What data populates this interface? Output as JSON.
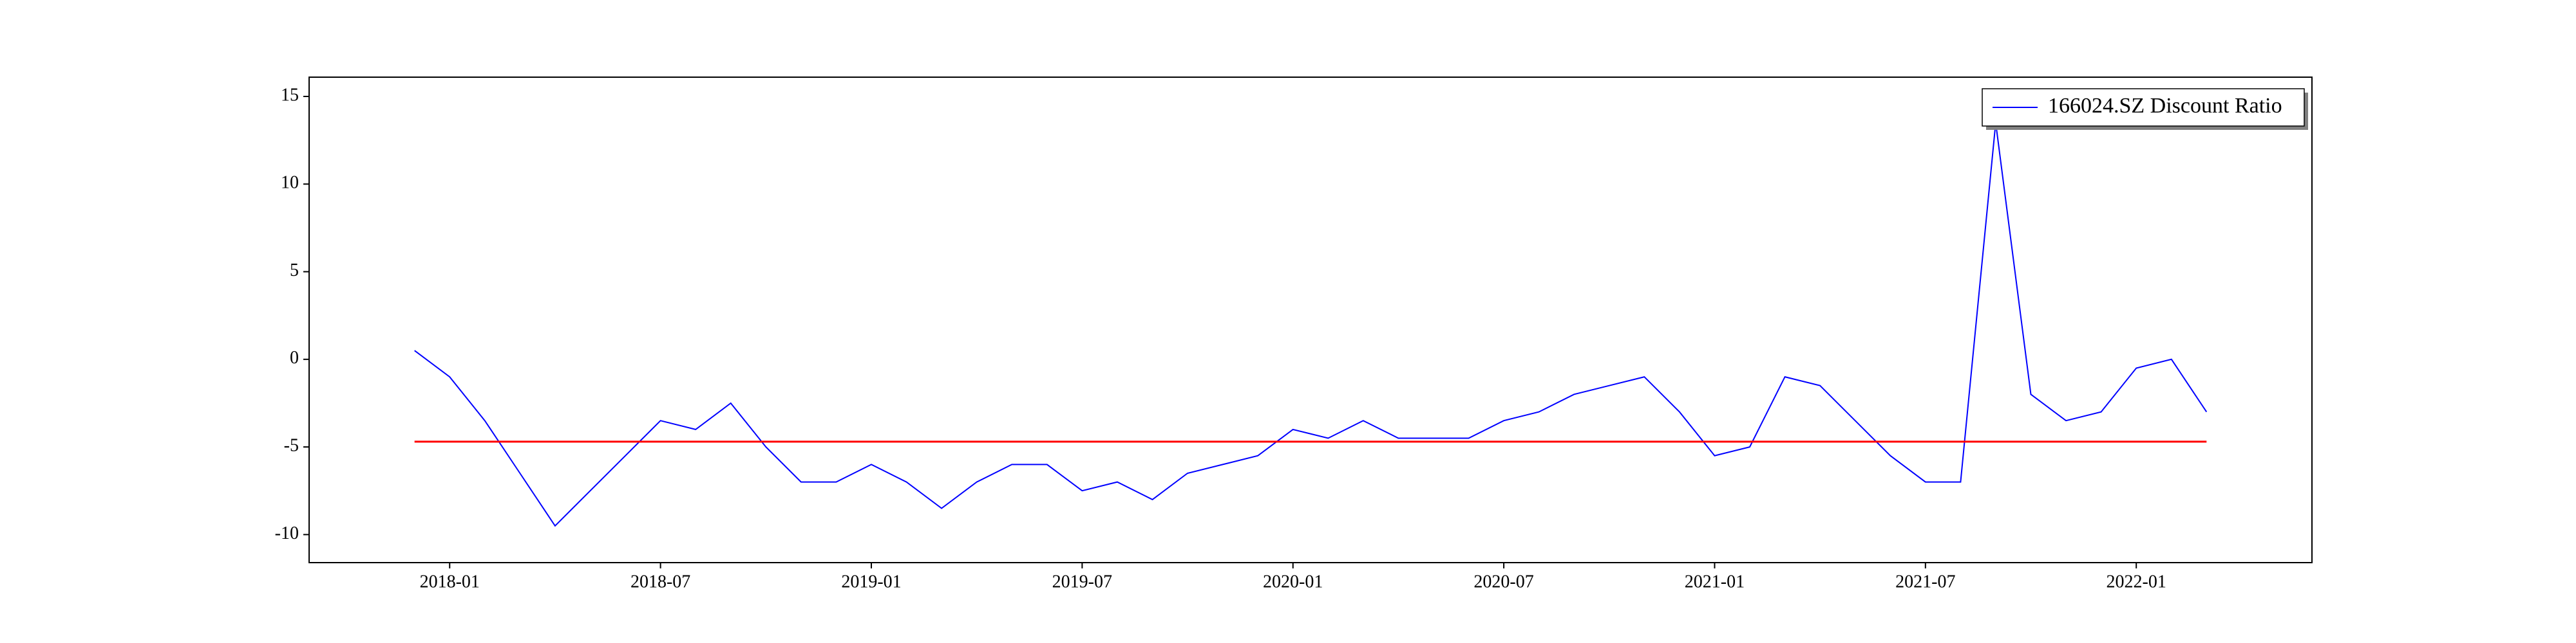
{
  "chart_data": {
    "type": "line",
    "x": [
      "2017-12",
      "2018-01",
      "2018-02",
      "2018-03",
      "2018-04",
      "2018-05",
      "2018-06",
      "2018-07",
      "2018-08",
      "2018-09",
      "2018-10",
      "2018-11",
      "2018-12",
      "2019-01",
      "2019-02",
      "2019-03",
      "2019-04",
      "2019-05",
      "2019-06",
      "2019-07",
      "2019-08",
      "2019-09",
      "2019-10",
      "2019-11",
      "2019-12",
      "2020-01",
      "2020-02",
      "2020-03",
      "2020-04",
      "2020-05",
      "2020-06",
      "2020-07",
      "2020-08",
      "2020-09",
      "2020-10",
      "2020-11",
      "2020-12",
      "2021-01",
      "2021-02",
      "2021-03",
      "2021-04",
      "2021-05",
      "2021-06",
      "2021-07",
      "2021-08",
      "2021-09",
      "2021-10",
      "2021-11",
      "2021-12",
      "2022-01",
      "2022-02",
      "2022-03"
    ],
    "series": [
      {
        "name": "166024.SZ Discount Ratio",
        "color": "#0000ff",
        "values": [
          0.5,
          -1,
          -3.5,
          -6.5,
          -9.5,
          -7.5,
          -5.5,
          -3.5,
          -4,
          -2.5,
          -5,
          -7,
          -7,
          -6,
          -7,
          -8.5,
          -7,
          -6,
          -6,
          -7.5,
          -7,
          -8,
          -6.5,
          -6,
          -5.5,
          -4,
          -4.5,
          -3.5,
          -4.5,
          -4.5,
          -4.5,
          -3.5,
          -3,
          -2,
          -1.5,
          -1,
          -3,
          -5.5,
          -5,
          -1,
          -1.5,
          -3.5,
          -5.5,
          -7,
          -7,
          13.5,
          -2,
          -3.5,
          -3,
          -0.5,
          0,
          -3
        ]
      }
    ],
    "hline": {
      "value": -4.7,
      "color": "#ff0000"
    },
    "xlim": [
      "2017-09",
      "2022-06"
    ],
    "xticks": [
      "2018-01",
      "2018-07",
      "2019-01",
      "2019-07",
      "2020-01",
      "2020-07",
      "2021-01",
      "2021-07",
      "2022-01"
    ],
    "ylim": [
      -11.6,
      16.1
    ],
    "yticks": [
      -10,
      -5,
      0,
      5,
      10,
      15
    ],
    "legend": "upper right"
  }
}
